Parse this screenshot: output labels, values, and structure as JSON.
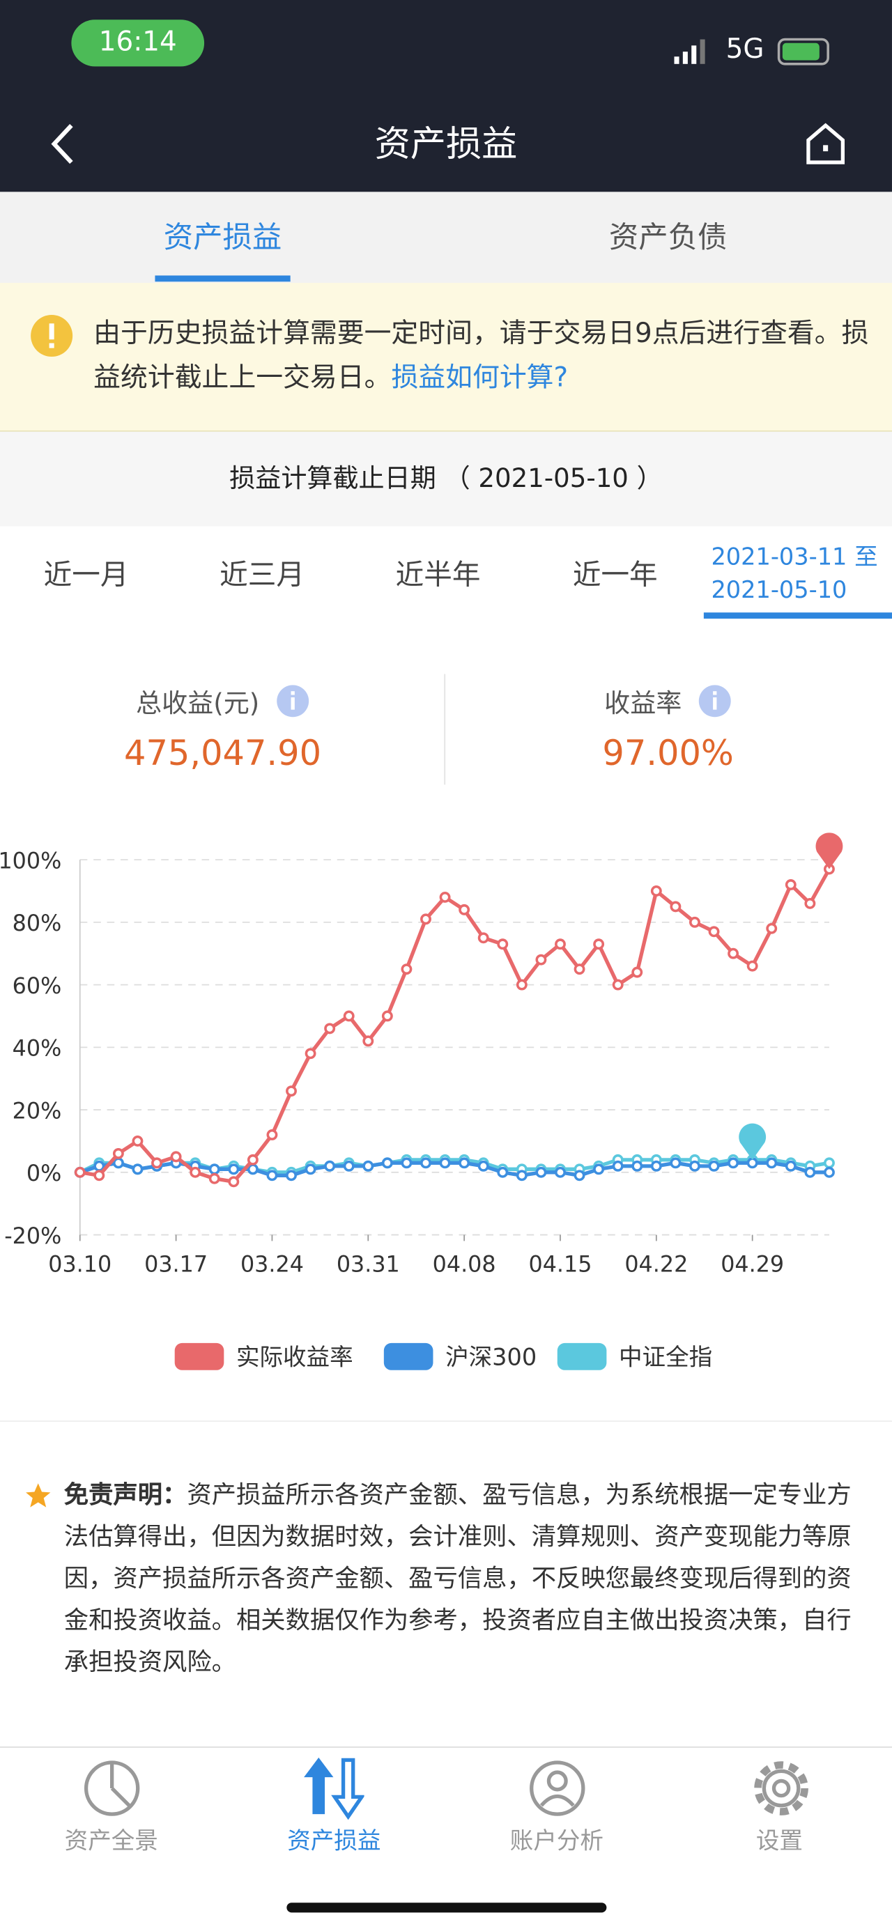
{
  "status": {
    "time": "16:14",
    "network": "5G"
  },
  "nav": {
    "title": "资产损益"
  },
  "tabs": [
    "资产损益",
    "资产负债"
  ],
  "notice": {
    "text": "由于历史损益计算需要一定时间，请于交易日9点后进行查看。损益统计截止上一交易日。",
    "link": "损益如何计算?"
  },
  "cutoff": "损益计算截止日期 （ 2021-05-10 ）",
  "periods": [
    "近一月",
    "近三月",
    "近半年",
    "近一年"
  ],
  "custom_range": {
    "start": "2021-03-11",
    "separator": "至",
    "end": "2021-05-10"
  },
  "summary": [
    {
      "label": "总收益(元)",
      "value": "475,047.90"
    },
    {
      "label": "收益率",
      "value": "97.00%"
    }
  ],
  "chart_data": {
    "type": "line",
    "categories": [
      "03.10",
      null,
      null,
      null,
      null,
      "03.17",
      null,
      null,
      null,
      null,
      "03.24",
      null,
      null,
      null,
      null,
      "03.31",
      null,
      null,
      null,
      null,
      "04.08",
      null,
      null,
      null,
      null,
      "04.15",
      null,
      null,
      null,
      null,
      "04.22",
      null,
      null,
      null,
      null,
      "04.29",
      null,
      null,
      null,
      null
    ],
    "series": [
      {
        "name": "实际收益率",
        "color": "#e8696b",
        "values": [
          0,
          -1,
          6,
          10,
          3,
          5,
          0,
          -2,
          -3,
          4,
          12,
          26,
          38,
          46,
          50,
          42,
          50,
          65,
          81,
          88,
          84,
          75,
          73,
          60,
          68,
          73,
          65,
          73,
          60,
          64,
          90,
          85,
          80,
          77,
          70,
          66,
          78,
          92,
          86,
          97
        ]
      },
      {
        "name": "沪深300",
        "color": "#3d8fe0",
        "values": [
          0,
          2,
          3,
          1,
          2,
          3,
          2,
          1,
          1,
          1,
          -1,
          -1,
          1,
          2,
          2,
          2,
          3,
          3,
          3,
          3,
          3,
          2,
          0,
          -1,
          0,
          0,
          -1,
          1,
          2,
          2,
          2,
          3,
          2,
          2,
          3,
          3,
          3,
          2,
          0,
          0
        ]
      },
      {
        "name": "中证全指",
        "color": "#5bc8de",
        "values": [
          0,
          3,
          3,
          1,
          2,
          3,
          3,
          1,
          2,
          1,
          0,
          0,
          2,
          2,
          3,
          2,
          3,
          4,
          4,
          4,
          4,
          3,
          1,
          1,
          1,
          1,
          1,
          2,
          4,
          4,
          4,
          4,
          4,
          3,
          4,
          4,
          4,
          3,
          2,
          3
        ]
      }
    ],
    "ylim": [
      -20,
      100
    ],
    "yticks": [
      {
        "value": -20,
        "label": "-20%"
      },
      {
        "value": 0,
        "label": "0%"
      },
      {
        "value": 20,
        "label": "20%"
      },
      {
        "value": 40,
        "label": "40%"
      },
      {
        "value": 60,
        "label": "60%"
      },
      {
        "value": 80,
        "label": "80%"
      },
      {
        "value": 100,
        "label": "100%"
      }
    ],
    "grid": true
  },
  "disclaimer": {
    "title": "免责声明：",
    "text": "资产损益所示各资产金额、盈亏信息，为系统根据一定专业方法估算得出，但因为数据时效，会计准则、清算规则、资产变现能力等原因，资产损益所示各资产金额、盈亏信息，不反映您最终变现后得到的资金和投资收益。相关数据仅作为参考，投资者应自主做出投资决策，自行承担投资风险。"
  },
  "bottom_nav": [
    "资产全景",
    "资产损益",
    "账户分析",
    "设置"
  ]
}
